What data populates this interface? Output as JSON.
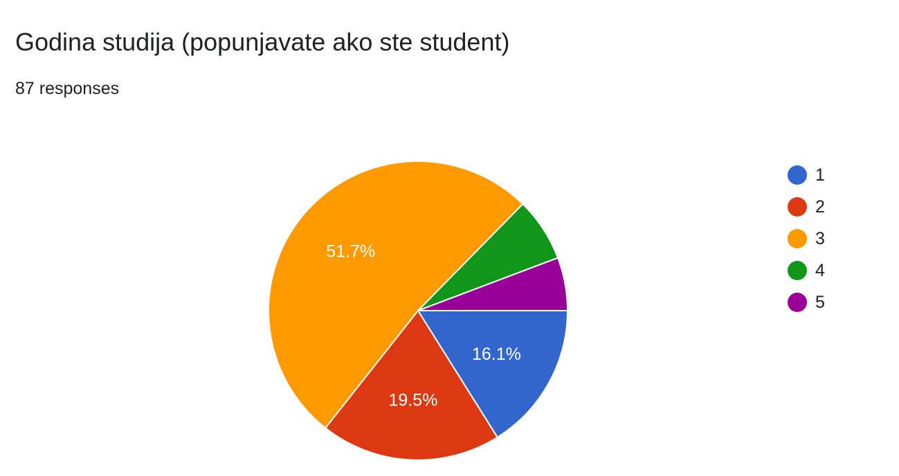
{
  "header": {
    "title": "Godina studija (popunjavate ako ste student)",
    "responses": "87 responses"
  },
  "chart_data": {
    "type": "pie",
    "total_responses": 87,
    "categories": [
      "1",
      "2",
      "3",
      "4",
      "5"
    ],
    "values": [
      14,
      17,
      45,
      6,
      5
    ],
    "percentages": [
      16.1,
      19.5,
      51.7,
      6.9,
      5.7
    ],
    "visible_labels": [
      "16.1%",
      "19.5%",
      "51.7%",
      "",
      ""
    ],
    "colors": [
      "#3366cc",
      "#dc3912",
      "#ff9900",
      "#109618",
      "#990099"
    ],
    "legend_position": "right",
    "start": "3 o'clock",
    "direction": "clockwise"
  }
}
